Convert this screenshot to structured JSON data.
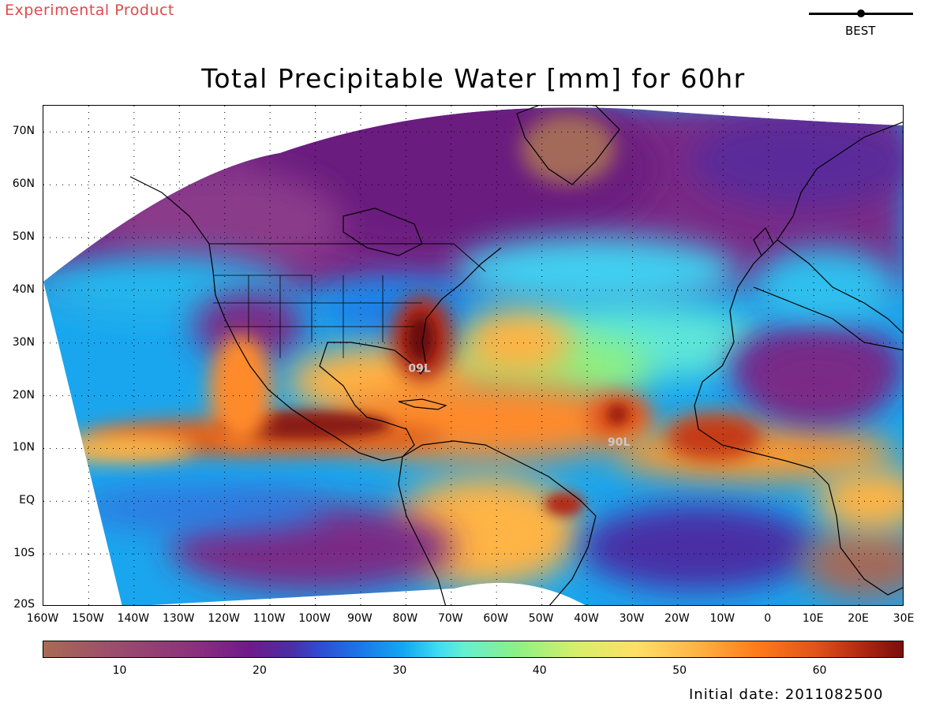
{
  "header": {
    "product_label": "Experimental Product",
    "legend_label": "BEST"
  },
  "map": {
    "title": "Total Precipitable Water [mm] for 60hr",
    "projection_extent": {
      "lon_min": -160,
      "lon_max": 30,
      "lat_min": -20,
      "lat_max": 75
    },
    "lat_labels": [
      "70N",
      "60N",
      "50N",
      "40N",
      "30N",
      "20N",
      "10N",
      "EQ",
      "10S",
      "20S"
    ],
    "lon_labels": [
      "160W",
      "150W",
      "140W",
      "130W",
      "120W",
      "110W",
      "100W",
      "90W",
      "80W",
      "70W",
      "60W",
      "50W",
      "40W",
      "30W",
      "20W",
      "10W",
      "0",
      "10E",
      "20E",
      "30E"
    ],
    "storms": [
      {
        "name": "90L",
        "lon": -33,
        "lat": 10.5
      },
      {
        "name": "09L",
        "lon": -77,
        "lat": 24.5
      }
    ],
    "grid": "dotted"
  },
  "colorbar": {
    "min": 4.5,
    "max": 66,
    "tick_labels": [
      "10",
      "20",
      "30",
      "40",
      "50",
      "60"
    ],
    "tick_values": [
      10,
      20,
      30,
      40,
      50,
      60
    ],
    "colors": [
      "#a86b53",
      "#8a2f7e",
      "#4a2fa6",
      "#1a78ea",
      "#3fdcf2",
      "#8cf086",
      "#ffe066",
      "#ff7b1a",
      "#b32a12",
      "#7a0d0d"
    ]
  },
  "footer": {
    "initial_date": "Initial date: 2011082500"
  }
}
